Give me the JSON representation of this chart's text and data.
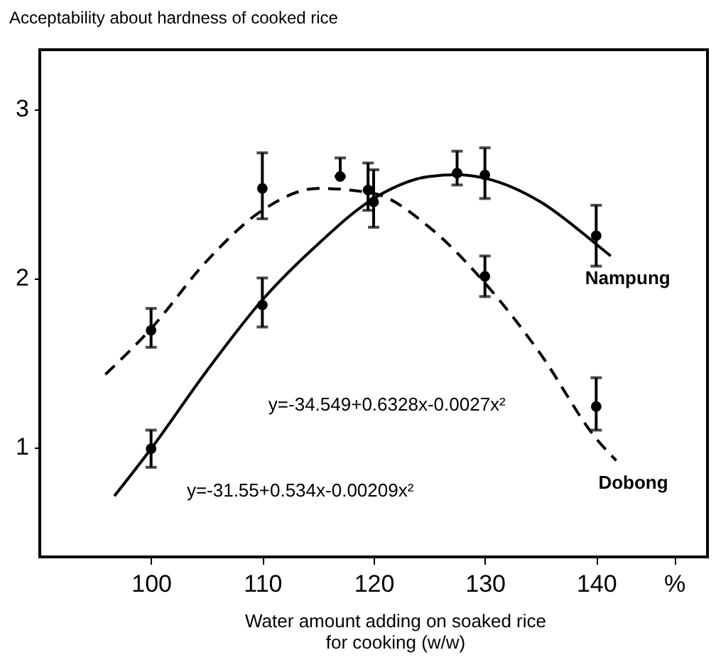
{
  "chart_data": {
    "type": "scatter",
    "ylabel": "Acceptability about hardness of cooked rice",
    "xlabel": "Water amount adding on soaked rice\nfor cooking (w/w)",
    "xlim": [
      90,
      150
    ],
    "ylim": [
      0.35,
      3.35
    ],
    "xticks": [
      100,
      110,
      120,
      130,
      140,
      {
        "value": 147,
        "label": "%"
      }
    ],
    "yticks": [
      1,
      2,
      3
    ],
    "grid": false,
    "series": [
      {
        "color": "#000000",
        "marker": "circle",
        "x": [
          100,
          110,
          120,
          127.5,
          130,
          140
        ],
        "values": [
          0.99,
          1.84,
          2.45,
          2.62,
          2.61,
          2.25
        ],
        "errors": [
          [
            0.88,
            1.1
          ],
          [
            1.71,
            2.0
          ],
          [
            2.3,
            2.64
          ],
          [
            2.55,
            2.75
          ],
          [
            2.47,
            2.77
          ],
          [
            2.07,
            2.43
          ]
        ]
      },
      {
        "color": "#000000",
        "marker": "circle",
        "x": [
          100,
          110,
          117,
          119.5,
          130,
          140
        ],
        "values": [
          1.69,
          2.53,
          2.6,
          2.52,
          2.01,
          1.24
        ],
        "errors": [
          [
            1.59,
            1.82
          ],
          [
            2.35,
            2.74
          ],
          [
            2.6,
            2.71
          ],
          [
            2.4,
            2.68
          ],
          [
            1.89,
            2.13
          ],
          [
            1.1,
            1.41
          ]
        ]
      },
      {
        "type": "line",
        "name": "Nampung",
        "color": "#000000",
        "marker": "none",
        "line_style": "solid",
        "x": [
          96.7,
          100,
          105,
          110,
          115,
          120,
          125,
          127.5,
          130,
          135,
          140,
          141.3
        ],
        "values": [
          0.71,
          0.99,
          1.45,
          1.87,
          2.2,
          2.47,
          2.6,
          2.61,
          2.59,
          2.45,
          2.2,
          2.13
        ]
      },
      {
        "type": "line",
        "name": "Dobong",
        "color": "#000000",
        "marker": "none",
        "line_style": "dashed",
        "x": [
          95.9,
          100,
          105,
          110,
          115,
          120,
          125,
          130,
          135,
          140,
          141.8
        ],
        "values": [
          1.43,
          1.7,
          2.1,
          2.4,
          2.53,
          2.5,
          2.3,
          1.97,
          1.55,
          1.05,
          0.92
        ]
      }
    ],
    "annotations": [
      "y=-34.549+0.6328x-0.0027x²",
      "y=-31.55+0.534x-0.00209x²"
    ]
  }
}
